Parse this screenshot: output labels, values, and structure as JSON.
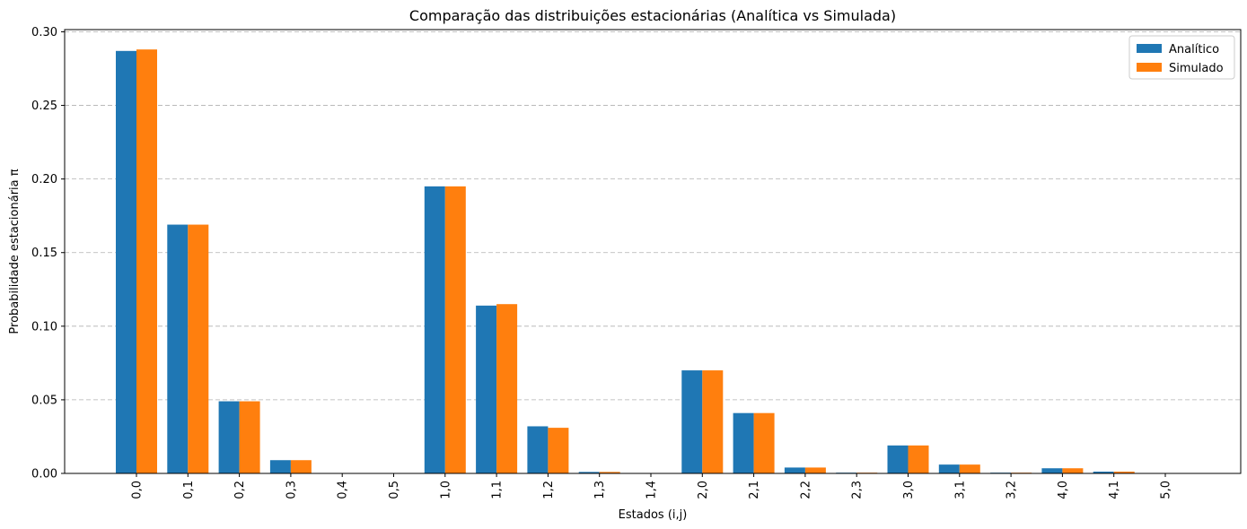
{
  "chart_data": {
    "type": "bar",
    "title": "Comparação das distribuições estacionárias (Analítica vs Simulada)",
    "xlabel": "Estados (i,j)",
    "ylabel": "Probabilidade estacionária π",
    "ylim": [
      0,
      0.3015
    ],
    "yticks": [
      "0.00",
      "0.05",
      "0.10",
      "0.15",
      "0.20",
      "0.25",
      "0.30"
    ],
    "ytick_values": [
      0,
      0.05,
      0.1,
      0.15,
      0.2,
      0.25,
      0.3
    ],
    "grid": "y-dashed",
    "legend_position": "top-right",
    "categories": [
      "0,0",
      "0,1",
      "0,2",
      "0,3",
      "0,4",
      "0,5",
      "1,0",
      "1,1",
      "1,2",
      "1,3",
      "1,4",
      "2,0",
      "2,1",
      "2,2",
      "2,3",
      "3,0",
      "3,1",
      "3,2",
      "4,0",
      "4,1",
      "5,0"
    ],
    "series": [
      {
        "name": "Analítico",
        "color": "#1f77b4",
        "values": [
          0.287,
          0.169,
          0.049,
          0.009,
          0.0,
          0.0,
          0.195,
          0.114,
          0.032,
          0.001,
          0.0,
          0.07,
          0.041,
          0.004,
          0.0005,
          0.019,
          0.006,
          0.0005,
          0.0035,
          0.0012,
          0.0003
        ]
      },
      {
        "name": "Simulado",
        "color": "#ff7f0e",
        "values": [
          0.288,
          0.169,
          0.049,
          0.009,
          0.0,
          0.0,
          0.195,
          0.115,
          0.031,
          0.001,
          0.0,
          0.07,
          0.041,
          0.004,
          0.0005,
          0.019,
          0.006,
          0.0005,
          0.0035,
          0.0012,
          0.0003
        ]
      }
    ]
  }
}
